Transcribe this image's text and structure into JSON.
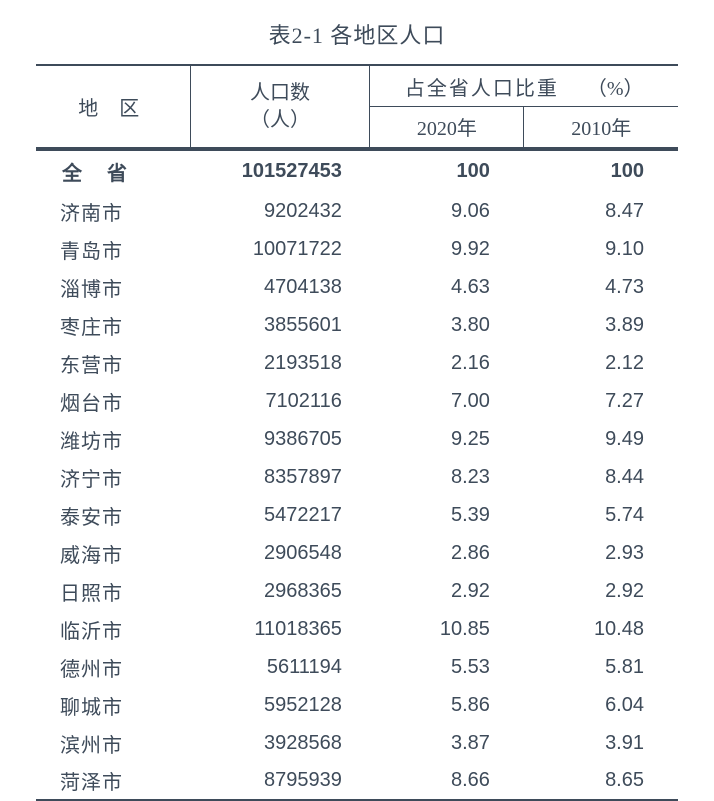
{
  "title": "表2-1  各地区人口",
  "header": {
    "region": "地 区",
    "population_line1": "人口数",
    "population_line2": "（人）",
    "share": "占全省人口比重",
    "pct": "（%）",
    "y2020": "2020年",
    "y2010": "2010年"
  },
  "text_color": "#3e4b5a",
  "background_color": "#ffffff",
  "border_color": "#3e4b5a",
  "rows": [
    {
      "region": "全 省",
      "population": "101527453",
      "y2020": "100",
      "y2010": "100",
      "total": true
    },
    {
      "region": "济南市",
      "population": "9202432",
      "y2020": "9.06",
      "y2010": "8.47",
      "total": false
    },
    {
      "region": "青岛市",
      "population": "10071722",
      "y2020": "9.92",
      "y2010": "9.10",
      "total": false
    },
    {
      "region": "淄博市",
      "population": "4704138",
      "y2020": "4.63",
      "y2010": "4.73",
      "total": false
    },
    {
      "region": "枣庄市",
      "population": "3855601",
      "y2020": "3.80",
      "y2010": "3.89",
      "total": false
    },
    {
      "region": "东营市",
      "population": "2193518",
      "y2020": "2.16",
      "y2010": "2.12",
      "total": false
    },
    {
      "region": "烟台市",
      "population": "7102116",
      "y2020": "7.00",
      "y2010": "7.27",
      "total": false
    },
    {
      "region": "潍坊市",
      "population": "9386705",
      "y2020": "9.25",
      "y2010": "9.49",
      "total": false
    },
    {
      "region": "济宁市",
      "population": "8357897",
      "y2020": "8.23",
      "y2010": "8.44",
      "total": false
    },
    {
      "region": "泰安市",
      "population": "5472217",
      "y2020": "5.39",
      "y2010": "5.74",
      "total": false
    },
    {
      "region": "威海市",
      "population": "2906548",
      "y2020": "2.86",
      "y2010": "2.93",
      "total": false
    },
    {
      "region": "日照市",
      "population": "2968365",
      "y2020": "2.92",
      "y2010": "2.92",
      "total": false
    },
    {
      "region": "临沂市",
      "population": "11018365",
      "y2020": "10.85",
      "y2010": "10.48",
      "total": false
    },
    {
      "region": "德州市",
      "population": "5611194",
      "y2020": "5.53",
      "y2010": "5.81",
      "total": false
    },
    {
      "region": "聊城市",
      "population": "5952128",
      "y2020": "5.86",
      "y2010": "6.04",
      "total": false
    },
    {
      "region": "滨州市",
      "population": "3928568",
      "y2020": "3.87",
      "y2010": "3.91",
      "total": false
    },
    {
      "region": "菏泽市",
      "population": "8795939",
      "y2020": "8.66",
      "y2010": "8.65",
      "total": false
    }
  ]
}
